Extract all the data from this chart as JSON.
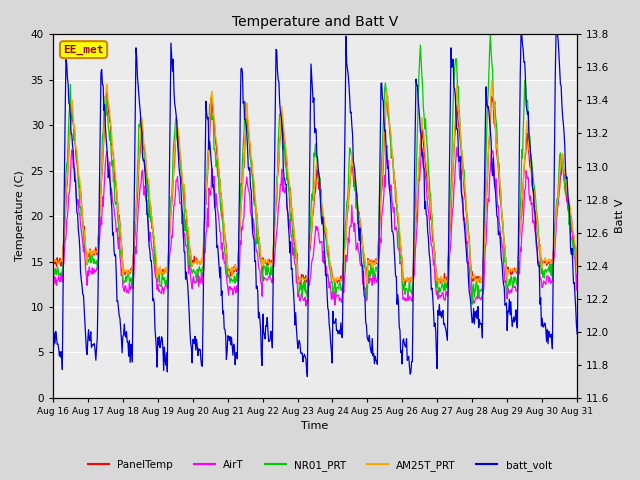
{
  "title": "Temperature and Batt V",
  "xlabel": "Time",
  "ylabel_left": "Temperature (C)",
  "ylabel_right": "Batt V",
  "annotation": "EE_met",
  "ylim_left": [
    0,
    40
  ],
  "ylim_right": [
    11.6,
    13.8
  ],
  "yticks_left": [
    0,
    5,
    10,
    15,
    20,
    25,
    30,
    35,
    40
  ],
  "yticks_right": [
    11.6,
    11.8,
    12.0,
    12.2,
    12.4,
    12.6,
    12.8,
    13.0,
    13.2,
    13.4,
    13.6,
    13.8
  ],
  "n_days": 15,
  "x_labels": [
    "Aug 16",
    "Aug 17",
    "Aug 18",
    "Aug 19",
    "Aug 20",
    "Aug 21",
    "Aug 22",
    "Aug 23",
    "Aug 24",
    "Aug 25",
    "Aug 26",
    "Aug 27",
    "Aug 28",
    "Aug 29",
    "Aug 30",
    "Aug 31"
  ],
  "series_colors": {
    "PanelTemp": "#ff0000",
    "AirT": "#ff00ff",
    "NR01_PRT": "#00cc00",
    "AM25T_PRT": "#ffa500",
    "batt_volt": "#0000dd"
  },
  "background_color": "#d8d8d8",
  "plot_bg_color": "#ebebeb",
  "grid_color": "#ffffff",
  "annotation_box_color": "#ffff00",
  "annotation_text_color": "#990000",
  "annotation_border_color": "#cc8800",
  "figsize": [
    6.4,
    4.8
  ],
  "dpi": 100
}
